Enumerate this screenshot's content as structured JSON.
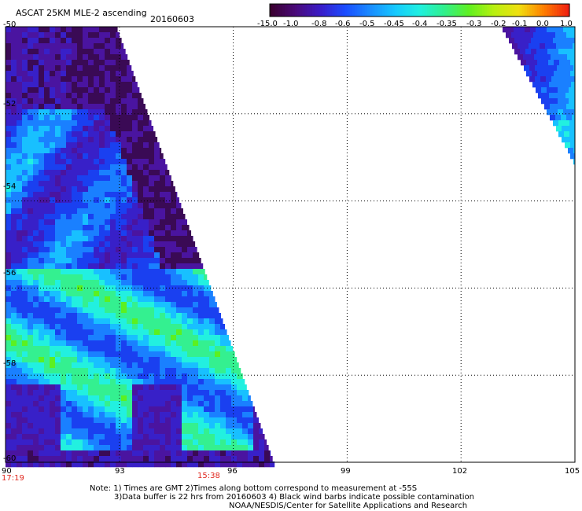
{
  "header": {
    "title": "ASCAT 25KM MLE-2 ascending",
    "date": "20160603"
  },
  "colorbar": {
    "labels": [
      "-15.0",
      "-1.0",
      "-0.8",
      "-0.6",
      "-0.5",
      "-0.45",
      "-0.4",
      "-0.35",
      "-0.3",
      "-0.2",
      "-0.1",
      "0.0",
      "1.0"
    ],
    "colors": [
      "#3a0030",
      "#4a0a7a",
      "#3a1cc8",
      "#1a4cff",
      "#1a8cff",
      "#16c8ff",
      "#20f0e0",
      "#30f08c",
      "#60f020",
      "#b8f010",
      "#f0e010",
      "#ff8000",
      "#f02010"
    ]
  },
  "y_axis": {
    "ticks": [
      "-50",
      "-52",
      "-54",
      "-56",
      "-58",
      "-60"
    ]
  },
  "x_axis": {
    "ticks": [
      "90",
      "93",
      "96",
      "99",
      "102",
      "105"
    ]
  },
  "times": {
    "left": "17:19",
    "middle": "15:38"
  },
  "notes": [
    "Note: 1) Times are GMT 2)Times along bottom correspond to measurement at -55S",
    "3)Data buffer is 22 hrs from 20160603 4) Black wind barbs indicate possible contamination",
    "NOAA/NESDIS/Center for Satellite Applications and Research"
  ]
}
